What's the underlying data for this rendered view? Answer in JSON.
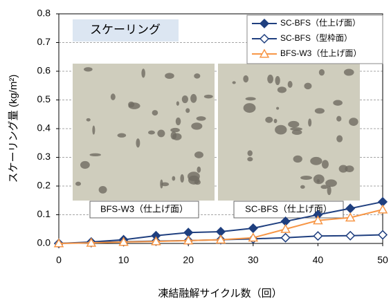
{
  "chart_data": {
    "type": "line",
    "inset_title": "スケーリング",
    "photo_labels": [
      "BFS-W3（仕上げ面）",
      "SC-BFS（仕上げ面）"
    ],
    "x_label": "凍結融解サイクル数（回）",
    "y_label": "スケーリング量 (kg/m²)",
    "x": [
      0,
      5,
      10,
      15,
      20,
      25,
      30,
      35,
      40,
      45,
      50
    ],
    "series": [
      {
        "name": "SC-BFS（仕上げ面）",
        "color": "#1f3f7f",
        "marker": "diamond-filled",
        "values": [
          0,
          0.005,
          0.013,
          0.027,
          0.038,
          0.041,
          0.053,
          0.077,
          0.1,
          0.122,
          0.145
        ]
      },
      {
        "name": "SC-BFS（型枠面）",
        "color": "#1f3f7f",
        "marker": "diamond-open",
        "values": [
          0,
          0.003,
          0.006,
          0.008,
          0.01,
          0.013,
          0.016,
          0.02,
          0.026,
          0.027,
          0.03
        ]
      },
      {
        "name": "BFS-W3（仕上げ面）",
        "color": "#f79646",
        "marker": "triangle-open",
        "values": [
          0,
          0.002,
          0.005,
          0.007,
          0.01,
          0.013,
          0.02,
          0.05,
          0.08,
          0.09,
          0.118
        ]
      }
    ],
    "xlim": [
      0,
      50
    ],
    "xticks": [
      0,
      10,
      20,
      30,
      40,
      50
    ],
    "ylim": [
      0,
      0.8
    ],
    "yticks": [
      {
        "value": 0,
        "label": "0.0"
      },
      0.1,
      0.2,
      0.3,
      0.4,
      0.5,
      0.6,
      0.7,
      0.8
    ],
    "grid": true,
    "legend": "upper right"
  }
}
